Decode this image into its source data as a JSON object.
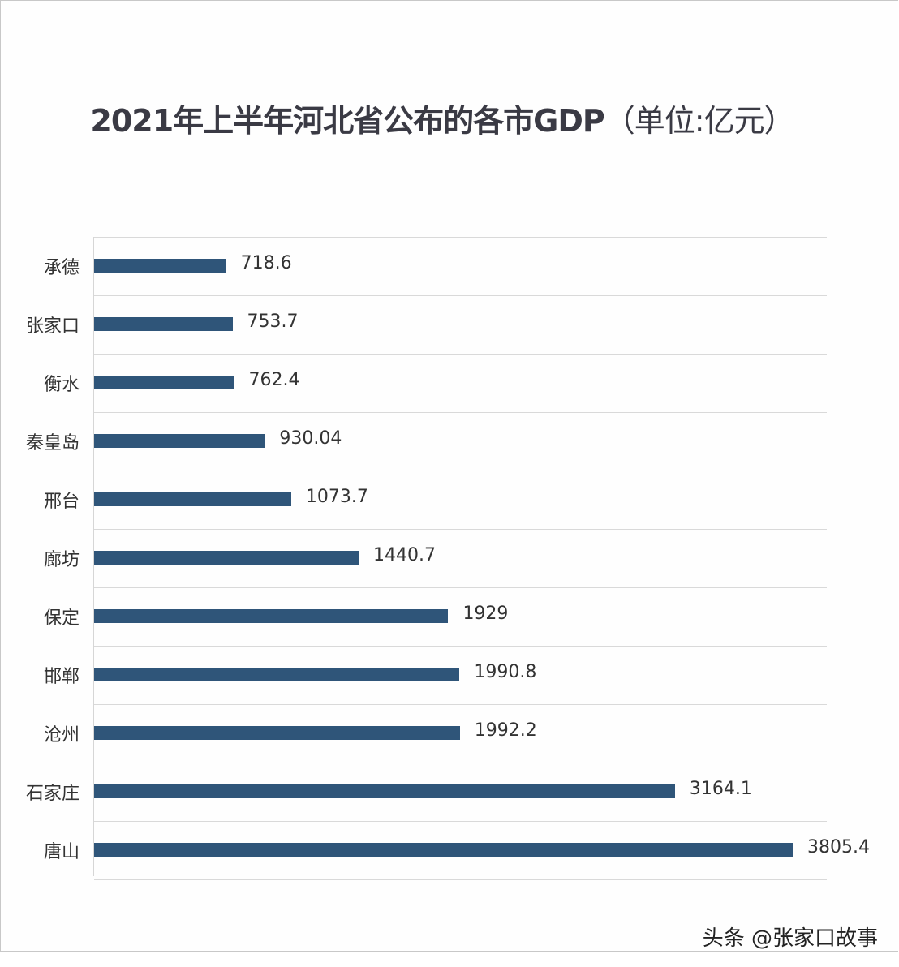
{
  "title": {
    "main": "2021年上半年河北省公布的各市GDP",
    "unit": "（单位:亿元）"
  },
  "watermark": "头条 @张家口故事",
  "colors": {
    "bar": "#2f5579",
    "gridline": "#d9d9d9",
    "text": "#333333"
  },
  "chart_data": {
    "type": "bar",
    "orientation": "horizontal",
    "title": "2021年上半年河北省公布的各市GDP（单位:亿元）",
    "xlabel": "",
    "ylabel": "",
    "categories": [
      "承德",
      "张家口",
      "衡水",
      "秦皇岛",
      "邢台",
      "廊坊",
      "保定",
      "邯郸",
      "沧州",
      "石家庄",
      "唐山"
    ],
    "values": [
      718.6,
      753.7,
      762.4,
      930.04,
      1073.7,
      1440.7,
      1929,
      1990.8,
      1992.2,
      3164.1,
      3805.4
    ],
    "value_labels": [
      "718.6",
      "753.7",
      "762.4",
      "930.04",
      "1073.7",
      "1440.7",
      "1929",
      "1990.8",
      "1992.2",
      "3164.1",
      "3805.4"
    ],
    "unit": "亿元",
    "grid": true,
    "legend": "none",
    "xlim": [
      0,
      4000
    ]
  }
}
